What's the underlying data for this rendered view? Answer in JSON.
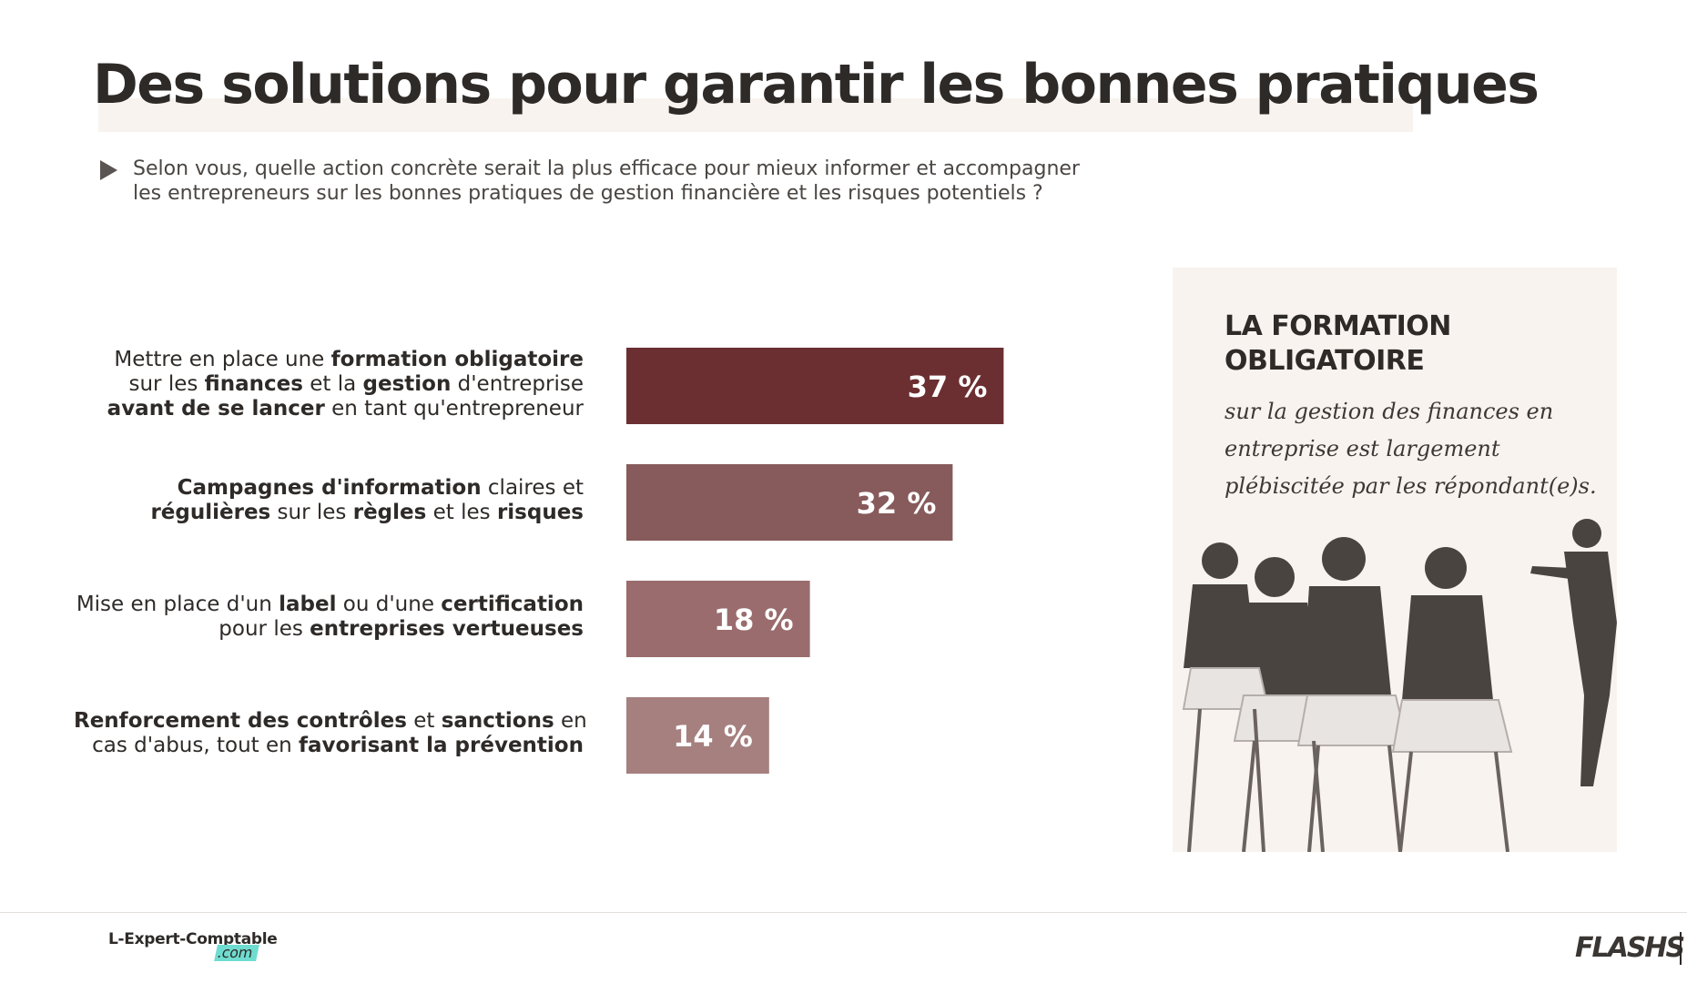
{
  "title": "Des solutions pour garantir les bonnes pratiques",
  "question": {
    "line1": "Selon vous, quelle action concrète serait la plus efficace pour mieux informer et accompagner",
    "line2": "les entrepreneurs sur les bonnes pratiques de gestion financière et les risques potentiels ?"
  },
  "options": [
    {
      "lines": [
        [
          {
            "t": "Mettre en place une ",
            "b": false
          },
          {
            "t": "formation obligatoire",
            "b": true
          }
        ],
        [
          {
            "t": "sur les ",
            "b": false
          },
          {
            "t": "finances",
            "b": true
          },
          {
            "t": " et la ",
            "b": false
          },
          {
            "t": "gestion",
            "b": true
          },
          {
            "t": " d'entreprise",
            "b": false
          }
        ],
        [
          {
            "t": "avant de se lancer",
            "b": true
          },
          {
            "t": " en tant qu'entrepreneur",
            "b": false
          }
        ]
      ]
    },
    {
      "lines": [
        [
          {
            "t": "Campagnes d'information",
            "b": true
          },
          {
            "t": " claires et",
            "b": false
          }
        ],
        [
          {
            "t": "régulières",
            "b": true
          },
          {
            "t": " sur les ",
            "b": false
          },
          {
            "t": "règles",
            "b": true
          },
          {
            "t": " et les ",
            "b": false
          },
          {
            "t": "risques",
            "b": true
          }
        ]
      ]
    },
    {
      "lines": [
        [
          {
            "t": "Mise en place d'un ",
            "b": false
          },
          {
            "t": "label",
            "b": true
          },
          {
            "t": " ou d'une ",
            "b": false
          },
          {
            "t": "certification",
            "b": true
          }
        ],
        [
          {
            "t": "pour les ",
            "b": false
          },
          {
            "t": "entreprises vertueuses",
            "b": true
          }
        ]
      ]
    },
    {
      "lines": [
        [
          {
            "t": "Renforcement des contrôles",
            "b": true
          },
          {
            "t": " et ",
            "b": false
          },
          {
            "t": "sanctions",
            "b": true
          },
          {
            "t": " en",
            "b": false
          }
        ],
        [
          {
            "t": "cas d'abus, tout en ",
            "b": false
          },
          {
            "t": "favorisant la prévention",
            "b": true
          }
        ]
      ]
    }
  ],
  "chart_data": {
    "type": "bar",
    "orientation": "horizontal",
    "categories": [
      "Mettre en place une formation obligatoire sur les finances et la gestion d'entreprise avant de se lancer en tant qu'entrepreneur",
      "Campagnes d'information claires et régulières sur les règles et les risques",
      "Mise en place d'un label ou d'une certification pour les entreprises vertueuses",
      "Renforcement des contrôles et sanctions en cas d'abus, tout en favorisant la prévention"
    ],
    "values": [
      37,
      32,
      18,
      14
    ],
    "labels": [
      "37 %",
      "32 %",
      "18 %",
      "14 %"
    ],
    "colors": [
      "#6b2f31",
      "#875a5b",
      "#9a6c6d",
      "#a5807f"
    ],
    "unit": "%"
  },
  "panel": {
    "title_line1": "LA FORMATION",
    "title_line2": "OBLIGATOIRE",
    "text_line1": "sur la gestion des finances en",
    "text_line2": "entreprise est largement",
    "text_line3": "plébiscitée par les répondant(e)s."
  },
  "footer": {
    "brand": "L-Expert-Comptable",
    "brand_suffix": ".com",
    "partner": "FLASHS"
  }
}
